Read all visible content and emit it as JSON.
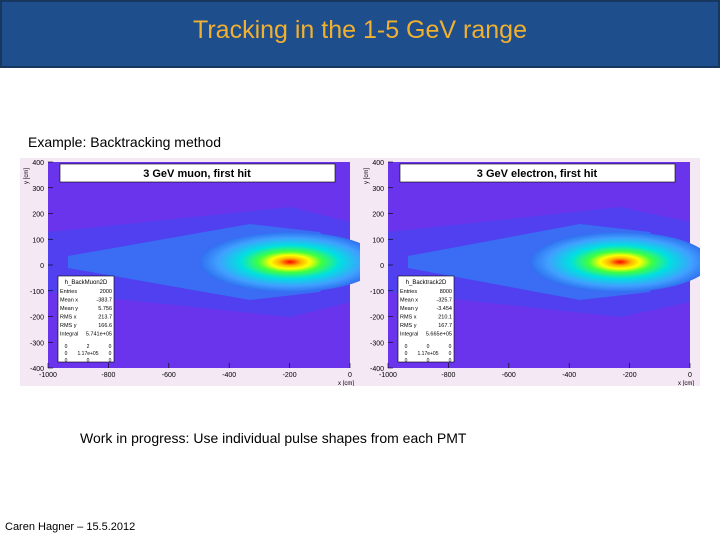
{
  "header": {
    "title": "Tracking in the 1-5 GeV range"
  },
  "subtitle": "Example: Backtracking method",
  "plots": [
    {
      "title": "3 GeV muon, first hit",
      "x_label": "x [cm]",
      "y_label": "y [cm]",
      "xticks": [
        -1000,
        -800,
        -600,
        -400,
        -200,
        0
      ],
      "yticks": [
        400,
        300,
        200,
        100,
        0,
        -100,
        -200,
        -300,
        -400
      ],
      "stats": {
        "name": "h_BackMuon2D",
        "rows": [
          [
            "Entries",
            "2000"
          ],
          [
            "Mean x",
            "-383.7"
          ],
          [
            "Mean y",
            "5.756"
          ],
          [
            "RMS x",
            "213.7"
          ],
          [
            "RMS y",
            "166.6"
          ],
          [
            "Integral",
            "5.741e+05"
          ]
        ],
        "grid": [
          [
            "0",
            "2",
            "0"
          ],
          [
            "0",
            "1.17e+05",
            "0"
          ],
          [
            "0",
            "0",
            "0"
          ]
        ]
      }
    },
    {
      "title": "3 GeV electron, first hit",
      "x_label": "x [cm]",
      "y_label": "y [cm]",
      "xticks": [
        -1000,
        -800,
        -600,
        -400,
        -200,
        0
      ],
      "yticks": [
        400,
        300,
        200,
        100,
        0,
        -100,
        -200,
        -300,
        -400
      ],
      "stats": {
        "name": "h_Backtrack2D",
        "rows": [
          [
            "Entries",
            "8000"
          ],
          [
            "Mean x",
            "-325.7"
          ],
          [
            "Mean y",
            "-3.454"
          ],
          [
            "RMS x",
            "210.1"
          ],
          [
            "RMS y",
            "167.7"
          ],
          [
            "Integral",
            "5.665e+05"
          ]
        ],
        "grid": [
          [
            "0",
            "0",
            "0"
          ],
          [
            "0",
            "1.17e+05",
            "0"
          ],
          [
            "0",
            "0",
            "0"
          ]
        ]
      }
    }
  ],
  "note": "Work in progress: Use individual pulse shapes from each PMT",
  "footer": "Caren Hagner – 15.5.2012"
}
